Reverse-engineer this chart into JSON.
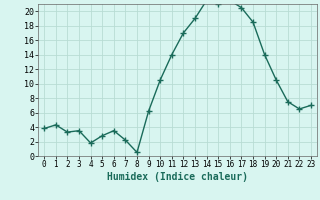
{
  "x": [
    0,
    1,
    2,
    3,
    4,
    5,
    6,
    7,
    8,
    9,
    10,
    11,
    12,
    13,
    14,
    15,
    16,
    17,
    18,
    19,
    20,
    21,
    22,
    23
  ],
  "y": [
    3.8,
    4.3,
    3.3,
    3.5,
    1.8,
    2.8,
    3.5,
    2.2,
    0.5,
    6.2,
    10.5,
    14.0,
    17.0,
    19.0,
    21.5,
    21.0,
    21.5,
    20.5,
    18.5,
    14.0,
    10.5,
    7.5,
    6.5,
    7.0
  ],
  "line_color": "#1a6b5a",
  "marker": "+",
  "marker_size": 4,
  "linewidth": 1.0,
  "bg_color": "#d8f5f0",
  "grid_color": "#b8dcd4",
  "xlabel": "Humidex (Indice chaleur)",
  "xlabel_fontsize": 7,
  "tick_fontsize": 6,
  "xlim": [
    -0.5,
    23.5
  ],
  "ylim": [
    0,
    21
  ],
  "yticks": [
    0,
    2,
    4,
    6,
    8,
    10,
    12,
    14,
    16,
    18,
    20
  ],
  "xticks": [
    0,
    1,
    2,
    3,
    4,
    5,
    6,
    7,
    8,
    9,
    10,
    11,
    12,
    13,
    14,
    15,
    16,
    17,
    18,
    19,
    20,
    21,
    22,
    23
  ]
}
